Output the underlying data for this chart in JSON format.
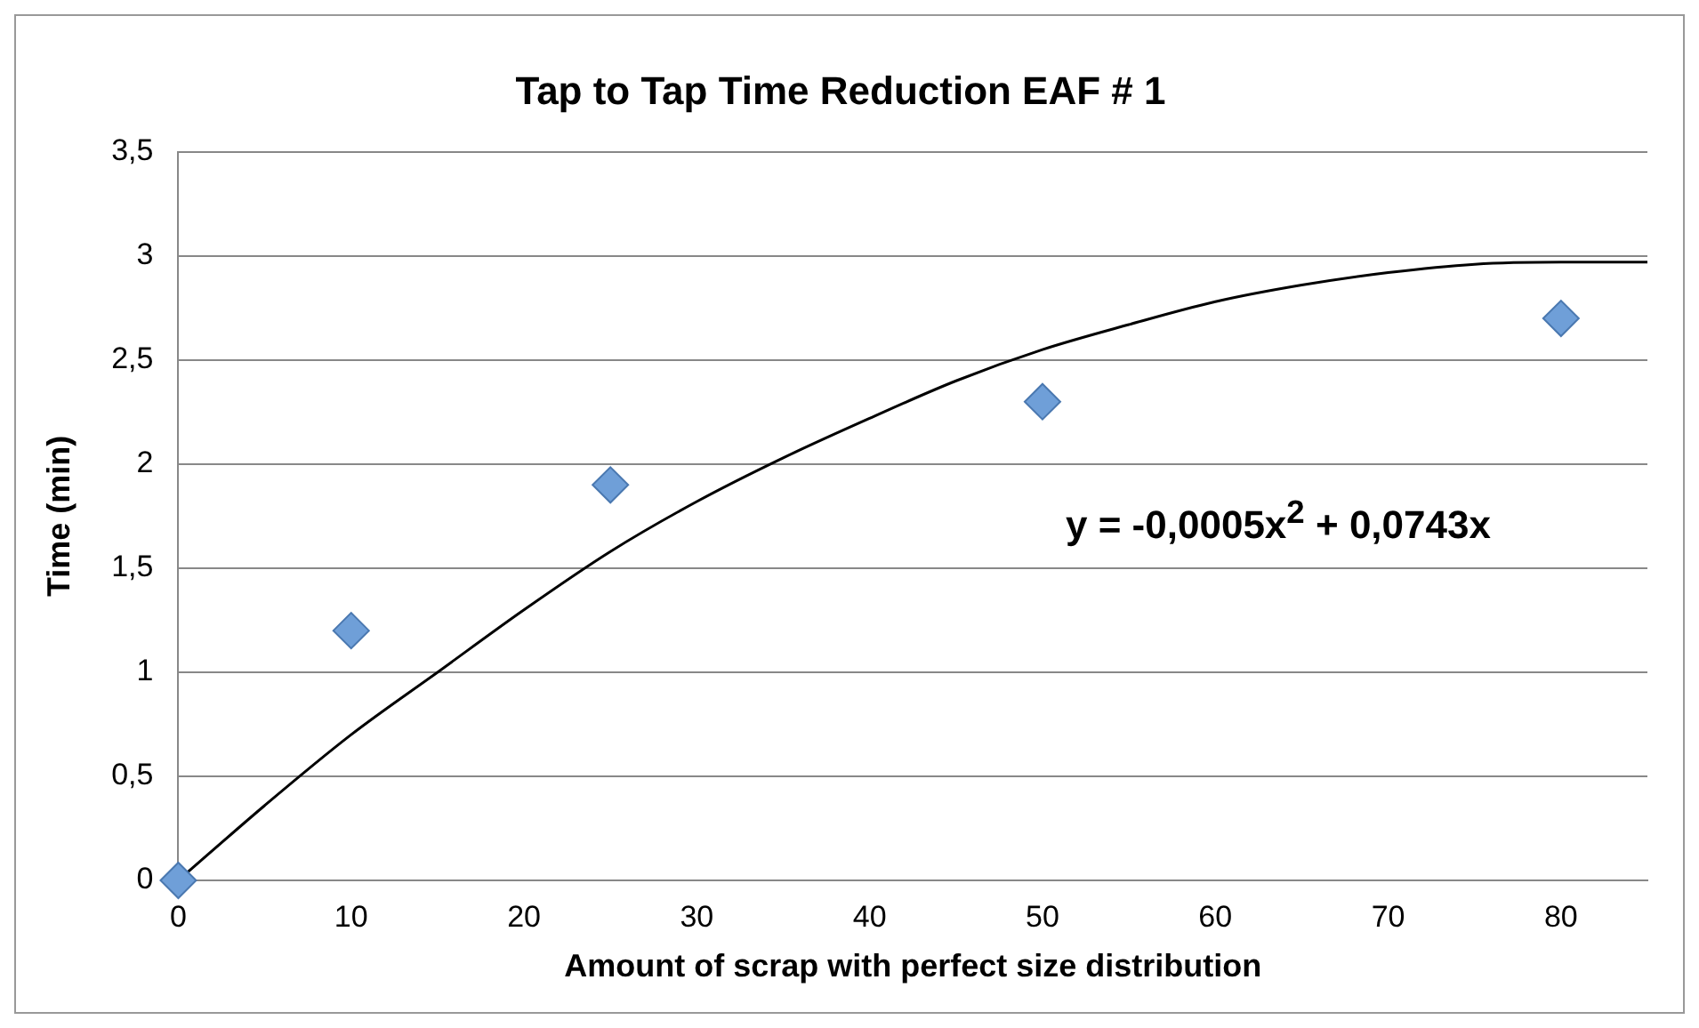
{
  "chart_data": {
    "type": "scatter",
    "title": "Tap to Tap Time Reduction EAF # 1",
    "xlabel": "Amount of scrap with perfect size distribution",
    "ylabel": "Time (min)",
    "annotations": [
      "y = -0,0005x$^{2}$ + 0,0743x"
    ],
    "series": [
      {
        "color": "#6f9fd8",
        "x": [
          0,
          10,
          25,
          50,
          80
        ],
        "values": [
          0,
          1.2,
          1.9,
          2.3,
          2.7
        ],
        "marker": "diamond"
      },
      {
        "type": "line",
        "color": "#000000",
        "x": [
          0,
          5,
          10,
          15,
          20,
          25,
          30,
          35,
          40,
          45,
          50,
          55,
          60,
          65,
          70,
          75,
          80,
          85
        ],
        "values": [
          0,
          0.36,
          0.7,
          1.0,
          1.3,
          1.58,
          1.82,
          2.03,
          2.22,
          2.4,
          2.55,
          2.67,
          2.78,
          2.86,
          2.92,
          2.96,
          2.97,
          2.97
        ],
        "marker": "none",
        "line_style": "solid"
      }
    ],
    "xlim": [
      0,
      85
    ],
    "xticks": [
      0,
      10,
      20,
      30,
      40,
      50,
      60,
      70,
      80
    ],
    "ylim": [
      0,
      3.5
    ],
    "yticks": [
      0,
      {
        "value": 0.5,
        "label": "0,5"
      },
      1,
      {
        "value": 1.5,
        "label": "1,5"
      },
      2,
      {
        "value": 2.5,
        "label": "2,5"
      },
      3,
      {
        "value": 3.5,
        "label": "3,5"
      }
    ],
    "grid": "y",
    "legend": false
  }
}
